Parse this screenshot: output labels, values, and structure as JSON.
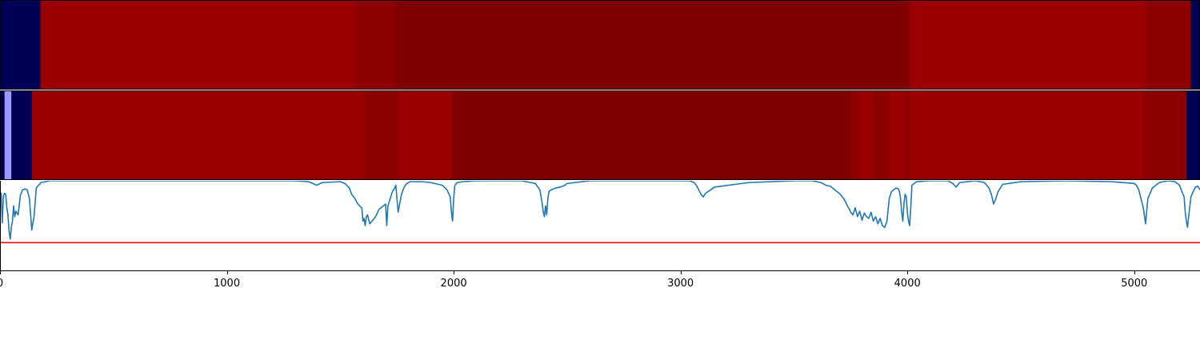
{
  "chart_data": [
    {
      "type": "heatmap",
      "title": "",
      "xlim": [
        0,
        5290
      ],
      "colors": {
        "low": "#000055",
        "light": "#9999ff",
        "mid": "#9a0000",
        "high": "#800000"
      },
      "segments": [
        {
          "x0": 0,
          "x1": 178,
          "level": "low"
        },
        {
          "x0": 178,
          "x1": 1565,
          "level": "mid"
        },
        {
          "x0": 1565,
          "x1": 1740,
          "level": "mid-dark"
        },
        {
          "x0": 1740,
          "x1": 4010,
          "level": "high"
        },
        {
          "x0": 4010,
          "x1": 5055,
          "level": "mid"
        },
        {
          "x0": 5055,
          "x1": 5250,
          "level": "mid-dark"
        },
        {
          "x0": 5250,
          "x1": 5290,
          "level": "low"
        }
      ]
    },
    {
      "type": "heatmap",
      "title": "",
      "xlim": [
        0,
        5290
      ],
      "segments": [
        {
          "x0": 0,
          "x1": 20,
          "level": "low"
        },
        {
          "x0": 20,
          "x1": 50,
          "level": "light"
        },
        {
          "x0": 50,
          "x1": 140,
          "level": "low"
        },
        {
          "x0": 140,
          "x1": 1605,
          "level": "mid"
        },
        {
          "x0": 1605,
          "x1": 1635,
          "level": "mid-dark"
        },
        {
          "x0": 1635,
          "x1": 1755,
          "level": "mid-dark"
        },
        {
          "x0": 1755,
          "x1": 1995,
          "level": "mid"
        },
        {
          "x0": 1995,
          "x1": 3750,
          "level": "high"
        },
        {
          "x0": 3750,
          "x1": 3790,
          "level": "mid-dark"
        },
        {
          "x0": 3790,
          "x1": 3845,
          "level": "mid"
        },
        {
          "x0": 3845,
          "x1": 3920,
          "level": "mid-dark"
        },
        {
          "x0": 3920,
          "x1": 3985,
          "level": "mid"
        },
        {
          "x0": 3985,
          "x1": 4010,
          "level": "mid-dark"
        },
        {
          "x0": 4010,
          "x1": 5040,
          "level": "mid"
        },
        {
          "x0": 5040,
          "x1": 5230,
          "level": "mid-dark"
        },
        {
          "x0": 5230,
          "x1": 5290,
          "level": "low"
        }
      ]
    },
    {
      "type": "line",
      "title": "",
      "xlabel": "",
      "ylabel": "",
      "xlim": [
        0,
        5290
      ],
      "ylim": [
        0,
        1
      ],
      "xticks": [
        0,
        1000,
        2000,
        3000,
        4000,
        5000
      ],
      "threshold": 0.31,
      "line_color": "#1f77b4",
      "threshold_color": "#ff0000",
      "series": [
        {
          "x": [
            0,
            5,
            10,
            15,
            20,
            25,
            30,
            35,
            40,
            45,
            50,
            55,
            60,
            65,
            70,
            80,
            90,
            100,
            110,
            120,
            130,
            140,
            150,
            160,
            180,
            220,
            300,
            400,
            500,
            600,
            700,
            800,
            900,
            1000,
            1100,
            1200,
            1300,
            1360,
            1380,
            1395,
            1420,
            1500,
            1520,
            1540,
            1550,
            1565,
            1575,
            1585,
            1595,
            1600,
            1605,
            1610,
            1615,
            1620,
            1630,
            1640,
            1650,
            1660,
            1670,
            1680,
            1690,
            1700,
            1705,
            1710,
            1720,
            1730,
            1740,
            1745,
            1750,
            1755,
            1770,
            1780,
            1790,
            1800,
            1810,
            1830,
            1860,
            1900,
            1950,
            1970,
            1985,
            1990,
            1995,
            2000,
            2005,
            2015,
            2040,
            2100,
            2200,
            2300,
            2360,
            2380,
            2390,
            2395,
            2400,
            2405,
            2410,
            2415,
            2420,
            2430,
            2450,
            2470,
            2490,
            2500,
            2600,
            2800,
            3000,
            3040,
            3060,
            3070,
            3080,
            3090,
            3100,
            3110,
            3150,
            3300,
            3500,
            3580,
            3600,
            3620,
            3640,
            3660,
            3680,
            3690,
            3700,
            3710,
            3720,
            3730,
            3740,
            3745,
            3750,
            3760,
            3770,
            3780,
            3790,
            3800,
            3810,
            3820,
            3830,
            3840,
            3850,
            3860,
            3870,
            3880,
            3890,
            3900,
            3910,
            3920,
            3930,
            3940,
            3950,
            3960,
            3965,
            3970,
            3975,
            3980,
            3985,
            3990,
            3995,
            4000,
            4005,
            4010,
            4015,
            4020,
            4040,
            4100,
            4180,
            4200,
            4215,
            4230,
            4300,
            4340,
            4360,
            4370,
            4375,
            4380,
            4390,
            4400,
            4420,
            4500,
            4700,
            4900,
            5000,
            5010,
            5020,
            5030,
            5040,
            5050,
            5060,
            5080,
            5110,
            5150,
            5180,
            5200,
            5210,
            5220,
            5225,
            5230,
            5235,
            5240,
            5250,
            5260,
            5270,
            5280,
            5290
          ],
          "y": [
            0.87,
            0.86,
            0.53,
            0.83,
            0.86,
            0.85,
            0.7,
            0.62,
            0.44,
            0.35,
            0.48,
            0.55,
            0.72,
            0.6,
            0.66,
            0.62,
            0.84,
            0.9,
            0.91,
            0.9,
            0.8,
            0.45,
            0.6,
            0.92,
            0.98,
            1.0,
            1.0,
            1.0,
            1.0,
            1.0,
            1.0,
            1.0,
            1.0,
            1.0,
            1.0,
            1.0,
            1.0,
            0.99,
            0.97,
            0.95,
            0.98,
            0.99,
            0.97,
            0.92,
            0.85,
            0.8,
            0.75,
            0.72,
            0.7,
            0.55,
            0.58,
            0.5,
            0.6,
            0.62,
            0.52,
            0.55,
            0.58,
            0.62,
            0.68,
            0.7,
            0.72,
            0.74,
            0.5,
            0.72,
            0.8,
            0.88,
            0.92,
            0.95,
            0.8,
            0.65,
            0.85,
            0.92,
            0.96,
            0.98,
            0.99,
            0.99,
            0.99,
            0.98,
            0.95,
            0.9,
            0.82,
            0.65,
            0.55,
            0.8,
            0.95,
            0.98,
            0.99,
            1.0,
            1.0,
            1.0,
            0.97,
            0.9,
            0.75,
            0.65,
            0.6,
            0.72,
            0.62,
            0.8,
            0.88,
            0.9,
            0.92,
            0.93,
            0.95,
            0.97,
            1.0,
            1.0,
            1.0,
            1.0,
            0.98,
            0.95,
            0.9,
            0.85,
            0.82,
            0.86,
            0.93,
            0.98,
            1.0,
            1.0,
            0.99,
            0.98,
            0.95,
            0.94,
            0.9,
            0.88,
            0.86,
            0.83,
            0.8,
            0.75,
            0.7,
            0.68,
            0.65,
            0.62,
            0.7,
            0.6,
            0.66,
            0.56,
            0.64,
            0.6,
            0.58,
            0.65,
            0.55,
            0.6,
            0.52,
            0.58,
            0.5,
            0.48,
            0.55,
            0.8,
            0.88,
            0.9,
            0.92,
            0.91,
            0.88,
            0.8,
            0.65,
            0.55,
            0.75,
            0.85,
            0.82,
            0.65,
            0.55,
            0.5,
            0.7,
            0.95,
            0.99,
            1.0,
            1.0,
            0.97,
            0.93,
            0.98,
            1.0,
            0.98,
            0.92,
            0.85,
            0.8,
            0.74,
            0.8,
            0.88,
            0.96,
            0.99,
            1.0,
            0.99,
            0.97,
            0.95,
            0.9,
            0.8,
            0.7,
            0.52,
            0.8,
            0.92,
            0.98,
            1.0,
            0.99,
            0.95,
            0.88,
            0.82,
            0.65,
            0.55,
            0.48,
            0.6,
            0.82,
            0.88,
            0.93,
            0.94,
            0.9
          ]
        }
      ]
    }
  ]
}
